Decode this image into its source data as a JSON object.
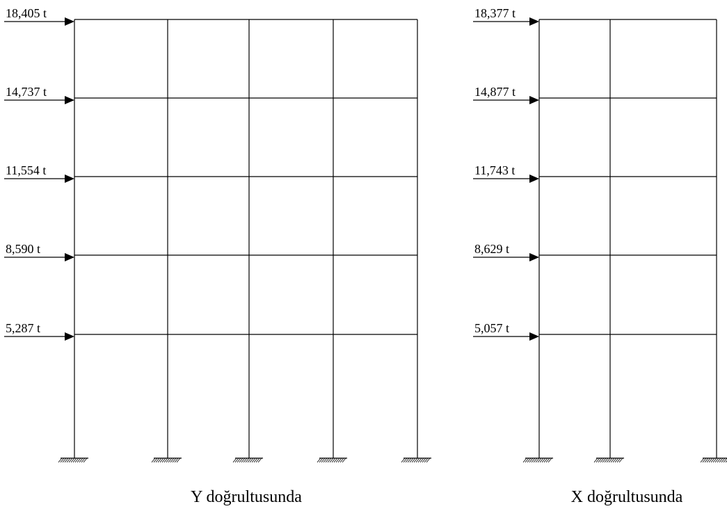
{
  "frames": [
    {
      "caption": "Y doğrultusunda",
      "loads": [
        "18,405 t",
        "14,737 t",
        "11,554 t",
        "8,590 t",
        "5,287 t"
      ],
      "bays": 4,
      "stories": 5
    },
    {
      "caption": "X doğrultusunda",
      "loads": [
        "18,377 t",
        "14,877 t",
        "11,743 t",
        "8,629 t",
        "5,057 t"
      ],
      "bays": 2,
      "stories": 5
    }
  ],
  "colors": {
    "line": "#000000",
    "background": "#ffffff"
  }
}
